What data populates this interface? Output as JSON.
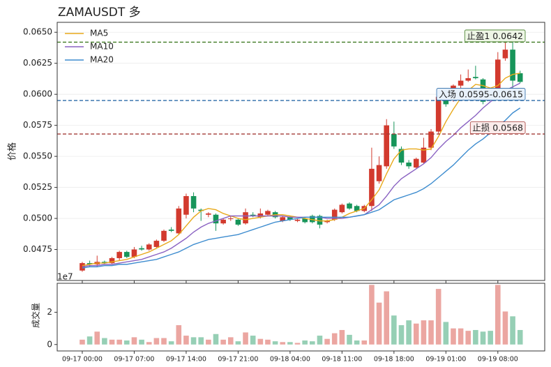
{
  "chart_data": {
    "type": "candlestick",
    "title": "ZAMAUSDT 多",
    "y_label": "价格",
    "x": [
      "09-17 00:00",
      "09-17 01:00",
      "09-17 02:00",
      "09-17 03:00",
      "09-17 04:00",
      "09-17 05:00",
      "09-17 06:00",
      "09-17 07:00",
      "09-17 08:00",
      "09-17 09:00",
      "09-17 10:00",
      "09-17 11:00",
      "09-17 12:00",
      "09-17 13:00",
      "09-17 14:00",
      "09-17 15:00",
      "09-17 16:00",
      "09-17 17:00",
      "09-17 18:00",
      "09-17 19:00",
      "09-17 20:00",
      "09-17 21:00",
      "09-17 22:00",
      "09-17 23:00",
      "09-18 00:00",
      "09-18 01:00",
      "09-18 02:00",
      "09-18 03:00",
      "09-18 04:00",
      "09-18 05:00",
      "09-18 06:00",
      "09-18 07:00",
      "09-18 08:00",
      "09-18 09:00",
      "09-18 10:00",
      "09-18 11:00",
      "09-18 12:00",
      "09-18 13:00",
      "09-18 14:00",
      "09-18 15:00",
      "09-18 16:00",
      "09-18 17:00",
      "09-18 18:00",
      "09-18 19:00",
      "09-18 20:00",
      "09-18 21:00",
      "09-18 22:00",
      "09-18 23:00",
      "09-19 00:00",
      "09-19 01:00",
      "09-19 02:00",
      "09-19 03:00",
      "09-19 04:00",
      "09-19 05:00",
      "09-19 06:00",
      "09-19 07:00",
      "09-19 08:00",
      "09-19 09:00",
      "09-19 10:00",
      "09-19 11:00"
    ],
    "open": [
      0.0458,
      0.0464,
      0.0463,
      0.0465,
      0.0464,
      0.0468,
      0.0473,
      0.0469,
      0.0476,
      0.0475,
      0.0477,
      0.0482,
      0.0491,
      0.0488,
      0.0503,
      0.0518,
      0.0507,
      0.0503,
      0.0503,
      0.0496,
      0.05,
      0.0499,
      0.0496,
      0.0503,
      0.0501,
      0.0503,
      0.0505,
      0.0498,
      0.0501,
      0.0498,
      0.05,
      0.0502,
      0.0502,
      0.0497,
      0.0499,
      0.0505,
      0.0512,
      0.051,
      0.0506,
      0.051,
      0.053,
      0.0542,
      0.0568,
      0.0556,
      0.0545,
      0.0541,
      0.0545,
      0.0557,
      0.057,
      0.0598,
      0.0595,
      0.0607,
      0.0611,
      0.0614,
      0.0612,
      0.0601,
      0.06,
      0.0629,
      0.0636,
      0.0617
    ],
    "high": [
      0.0465,
      0.0466,
      0.047,
      0.0466,
      0.0469,
      0.0474,
      0.0474,
      0.0477,
      0.0478,
      0.048,
      0.0483,
      0.0491,
      0.0493,
      0.051,
      0.052,
      0.0521,
      0.0508,
      0.0505,
      0.0504,
      0.05,
      0.0502,
      0.05,
      0.0508,
      0.0505,
      0.0508,
      0.0507,
      0.0506,
      0.0502,
      0.0502,
      0.05,
      0.0501,
      0.0503,
      0.0503,
      0.0499,
      0.0508,
      0.0512,
      0.0513,
      0.0511,
      0.0511,
      0.0557,
      0.055,
      0.058,
      0.0578,
      0.0558,
      0.0547,
      0.0549,
      0.0565,
      0.0572,
      0.0603,
      0.06,
      0.0608,
      0.0616,
      0.062,
      0.0623,
      0.0613,
      0.0603,
      0.0634,
      0.0643,
      0.0643,
      0.0619
    ],
    "low": [
      0.0457,
      0.0461,
      0.0461,
      0.0463,
      0.0463,
      0.0466,
      0.0468,
      0.0468,
      0.0474,
      0.0474,
      0.0476,
      0.0481,
      0.0489,
      0.0487,
      0.05,
      0.0505,
      0.0498,
      0.0501,
      0.049,
      0.0495,
      0.0498,
      0.0494,
      0.0495,
      0.0501,
      0.05,
      0.0502,
      0.05,
      0.0497,
      0.0498,
      0.0497,
      0.0496,
      0.0496,
      0.0492,
      0.0496,
      0.0498,
      0.0504,
      0.0507,
      0.0505,
      0.0505,
      0.0506,
      0.0528,
      0.054,
      0.0556,
      0.0543,
      0.054,
      0.054,
      0.0544,
      0.0555,
      0.0568,
      0.059,
      0.0594,
      0.0605,
      0.061,
      0.0612,
      0.0592,
      0.0595,
      0.0598,
      0.0627,
      0.0605,
      0.0609
    ],
    "close": [
      0.0464,
      0.0463,
      0.0465,
      0.0464,
      0.0468,
      0.0473,
      0.0469,
      0.0475,
      0.0475,
      0.0479,
      0.0482,
      0.049,
      0.049,
      0.0508,
      0.0518,
      0.0508,
      0.0506,
      0.0504,
      0.0496,
      0.0499,
      0.05,
      0.0495,
      0.0505,
      0.0502,
      0.0504,
      0.0506,
      0.0501,
      0.0501,
      0.0499,
      0.0499,
      0.0497,
      0.0497,
      0.0495,
      0.0498,
      0.0507,
      0.0511,
      0.0508,
      0.0506,
      0.051,
      0.054,
      0.0543,
      0.0575,
      0.0558,
      0.0545,
      0.0542,
      0.0548,
      0.0557,
      0.057,
      0.0598,
      0.0592,
      0.0607,
      0.0611,
      0.0613,
      0.0613,
      0.0594,
      0.0597,
      0.0628,
      0.0636,
      0.0611,
      0.061
    ],
    "up_color": "#d23a2e",
    "down_color": "#17955a",
    "series": [
      {
        "name": "MA5",
        "color": "#e8a91a",
        "values": [
          0.0462,
          0.0463,
          0.0464,
          0.0464,
          0.0465,
          0.0466,
          0.0467,
          0.0469,
          0.0471,
          0.0473,
          0.0476,
          0.0479,
          0.0482,
          0.0487,
          0.0494,
          0.0501,
          0.0506,
          0.0508,
          0.0507,
          0.0504,
          0.0502,
          0.05,
          0.0499,
          0.05,
          0.0501,
          0.0502,
          0.0503,
          0.0503,
          0.0502,
          0.0501,
          0.05,
          0.0499,
          0.0498,
          0.0498,
          0.0499,
          0.0501,
          0.0504,
          0.0506,
          0.0508,
          0.0515,
          0.0523,
          0.0536,
          0.0548,
          0.0555,
          0.0556,
          0.0556,
          0.0555,
          0.0556,
          0.0566,
          0.0578,
          0.0588,
          0.0597,
          0.0603,
          0.0608,
          0.0607,
          0.0605,
          0.0607,
          0.0613,
          0.0616,
          0.0617
        ]
      },
      {
        "name": "MA10",
        "color": "#8a62c2",
        "values": [
          0.0461,
          0.0462,
          0.0462,
          0.0463,
          0.0463,
          0.0464,
          0.0465,
          0.0466,
          0.0467,
          0.0469,
          0.0471,
          0.0473,
          0.0476,
          0.048,
          0.0484,
          0.0489,
          0.0493,
          0.0496,
          0.0498,
          0.05,
          0.0502,
          0.0502,
          0.0502,
          0.0502,
          0.0502,
          0.0502,
          0.0502,
          0.0502,
          0.0501,
          0.0501,
          0.0501,
          0.0501,
          0.0501,
          0.05,
          0.05,
          0.05,
          0.0501,
          0.0502,
          0.0503,
          0.0507,
          0.0511,
          0.0518,
          0.0526,
          0.0532,
          0.0536,
          0.054,
          0.0544,
          0.0549,
          0.0556,
          0.0562,
          0.0567,
          0.0573,
          0.0578,
          0.0583,
          0.0589,
          0.0594,
          0.0598,
          0.0603,
          0.0606,
          0.0609
        ]
      },
      {
        "name": "MA20",
        "color": "#3d8ccf",
        "values": [
          0.046,
          0.0461,
          0.0461,
          0.0462,
          0.0462,
          0.0463,
          0.0463,
          0.0464,
          0.0465,
          0.0466,
          0.0467,
          0.0469,
          0.0471,
          0.0473,
          0.0476,
          0.0479,
          0.0481,
          0.0483,
          0.0484,
          0.0485,
          0.0486,
          0.0487,
          0.0489,
          0.0491,
          0.0493,
          0.0495,
          0.0497,
          0.0498,
          0.0499,
          0.05,
          0.0501,
          0.0501,
          0.0501,
          0.0501,
          0.0501,
          0.0501,
          0.0501,
          0.0502,
          0.0503,
          0.0505,
          0.0507,
          0.0511,
          0.0515,
          0.0517,
          0.0519,
          0.0521,
          0.0524,
          0.0528,
          0.0533,
          0.0538,
          0.0543,
          0.0549,
          0.0555,
          0.056,
          0.0564,
          0.0569,
          0.0574,
          0.0579,
          0.0585,
          0.0589
        ]
      }
    ],
    "legend": "upper left",
    "ylim": [
      0.045,
      0.0658
    ],
    "yticks": [
      0.0475,
      {
        "value": 0.05,
        "label": "0.0500"
      },
      0.0525,
      {
        "value": 0.055,
        "label": "0.0550"
      },
      0.0575,
      {
        "value": 0.06,
        "label": "0.0600"
      },
      0.0625,
      {
        "value": 0.065,
        "label": "0.0650"
      }
    ],
    "grid": true,
    "xticks": [
      "09-17 00:00",
      "09-17 07:00",
      "09-17 14:00",
      "09-17 21:00",
      "09-18 04:00",
      "09-18 11:00",
      "09-18 18:00",
      "09-19 01:00",
      "09-19 08:00"
    ],
    "levels": [
      {
        "value": 0.0642,
        "label": "止盈1 0.0642",
        "color": "#3e7a22",
        "fill": "#eef6e6"
      },
      {
        "value": 0.0595,
        "label": "入场 0.0595-0.0615",
        "color": "#2a6aa8",
        "fill": "#e8f1fb"
      },
      {
        "value": 0.0568,
        "label": "止损 0.0568",
        "color": "#a43a36",
        "fill": "#fbeceb"
      }
    ],
    "volume": [
      0.3,
      0.5,
      0.8,
      0.4,
      0.3,
      0.3,
      0.25,
      0.45,
      0.3,
      0.15,
      0.4,
      0.4,
      0.2,
      1.2,
      0.55,
      0.45,
      0.45,
      0.3,
      0.65,
      0.3,
      0.45,
      0.2,
      0.75,
      0.55,
      0.35,
      0.3,
      0.2,
      0.15,
      0.15,
      0.1,
      0.25,
      0.2,
      0.55,
      0.35,
      0.7,
      0.9,
      0.6,
      0.25,
      0.25,
      3.7,
      2.6,
      3.3,
      1.8,
      1.2,
      1.5,
      1.3,
      1.5,
      1.5,
      3.45,
      1.4,
      1.0,
      1.0,
      0.85,
      0.9,
      0.8,
      0.85,
      3.7,
      2.05,
      1.75,
      0.9
    ],
    "volume_label": "成交量",
    "volume_offset": "1e7",
    "volume_ylim": [
      -0.4,
      3.8
    ],
    "volume_yticks": [
      0,
      2
    ]
  }
}
